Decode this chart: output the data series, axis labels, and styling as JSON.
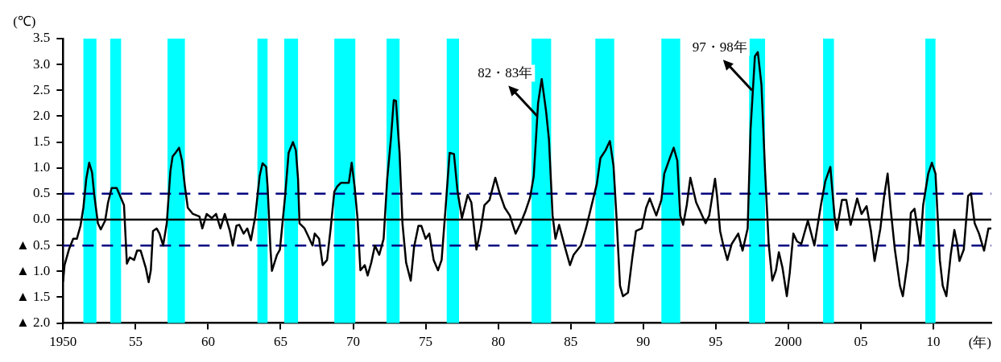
{
  "chart_data": {
    "type": "line",
    "ylabel": "(℃)",
    "xlabel": "(年)",
    "xlim": [
      1950,
      2014
    ],
    "xticks": [
      1950,
      {
        "value": 1955,
        "label": "55"
      },
      {
        "value": 1960,
        "label": "60"
      },
      {
        "value": 1965,
        "label": "65"
      },
      {
        "value": 1970,
        "label": "70"
      },
      {
        "value": 1975,
        "label": "75"
      },
      {
        "value": 1980,
        "label": "80"
      },
      {
        "value": 1985,
        "label": "85"
      },
      {
        "value": 1990,
        "label": "90"
      },
      {
        "value": 1995,
        "label": "95"
      },
      2000,
      {
        "value": 2005,
        "label": "05"
      },
      {
        "value": 2010,
        "label": "10"
      }
    ],
    "ylim": [
      -2,
      3.5
    ],
    "yticks": [
      {
        "value": -2,
        "label": "▲ 2.0"
      },
      {
        "value": -1.5,
        "label": "▲ 1.5"
      },
      {
        "value": -1,
        "label": "▲ 1.0"
      },
      {
        "value": -0.5,
        "label": "▲ 0.5"
      },
      {
        "value": 0,
        "label": "0.0"
      },
      0.5,
      {
        "value": 1,
        "label": "1.0"
      },
      1.5,
      {
        "value": 2,
        "label": "2.0"
      },
      2.5,
      {
        "value": 3,
        "label": "3.0"
      },
      3.5
    ],
    "x": [
      1950.0,
      1950.1,
      1950.4,
      1950.7,
      1950.95,
      1951.2,
      1951.4,
      1951.6,
      1951.8,
      1952.0,
      1952.15,
      1952.4,
      1952.6,
      1952.9,
      1953.1,
      1953.35,
      1953.7,
      1954.2,
      1954.4,
      1954.6,
      1954.9,
      1955.1,
      1955.35,
      1955.7,
      1955.9,
      1956.05,
      1956.2,
      1956.45,
      1956.65,
      1956.9,
      1957.15,
      1957.4,
      1957.55,
      1957.75,
      1958.0,
      1958.2,
      1958.4,
      1958.6,
      1958.95,
      1959.4,
      1959.6,
      1959.9,
      1960.25,
      1960.55,
      1960.85,
      1961.15,
      1961.5,
      1961.7,
      1961.95,
      1962.15,
      1962.45,
      1962.7,
      1962.95,
      1963.25,
      1963.55,
      1963.75,
      1964.0,
      1964.1,
      1964.3,
      1964.4,
      1964.75,
      1964.95,
      1965.3,
      1965.55,
      1965.85,
      1966.05,
      1966.2,
      1966.3,
      1966.65,
      1966.9,
      1967.2,
      1967.35,
      1967.65,
      1967.9,
      1968.2,
      1968.45,
      1968.7,
      1968.9,
      1969.15,
      1969.7,
      1969.9,
      1970.1,
      1970.3,
      1970.5,
      1970.8,
      1971.0,
      1971.25,
      1971.5,
      1971.8,
      1972.1,
      1972.35,
      1972.6,
      1972.8,
      1972.95,
      1973.2,
      1973.4,
      1973.65,
      1973.97,
      1974.2,
      1974.5,
      1974.7,
      1975.0,
      1975.25,
      1975.55,
      1975.85,
      1976.1,
      1976.4,
      1976.65,
      1976.95,
      1977.2,
      1977.5,
      1977.9,
      1978.15,
      1978.5,
      1978.8,
      1979.05,
      1979.4,
      1979.8,
      1980.1,
      1980.45,
      1980.8,
      1981.2,
      1981.55,
      1981.9,
      1982.2,
      1982.45,
      1982.75,
      1983.0,
      1983.3,
      1983.5,
      1983.75,
      1983.95,
      1984.2,
      1984.6,
      1984.95,
      1985.2,
      1985.7,
      1986.05,
      1986.4,
      1986.8,
      1987.05,
      1987.4,
      1987.7,
      1987.95,
      1988.15,
      1988.4,
      1988.6,
      1988.95,
      1989.25,
      1989.5,
      1989.9,
      1990.2,
      1990.45,
      1990.9,
      1991.25,
      1991.45,
      1991.9,
      1992.1,
      1992.35,
      1992.55,
      1992.75,
      1993.0,
      1993.25,
      1993.65,
      1993.9,
      1994.3,
      1994.55,
      1994.95,
      1995.1,
      1995.3,
      1995.5,
      1995.8,
      1996.1,
      1996.55,
      1996.85,
      1997.2,
      1997.4,
      1997.7,
      1997.9,
      1998.15,
      1998.4,
      1998.65,
      1998.9,
      1999.15,
      1999.35,
      1999.6,
      1999.9,
      2000.1,
      2000.35,
      2000.6,
      2000.9,
      2001.35,
      2001.8,
      2002.25,
      2002.55,
      2002.9,
      2003.2,
      2003.35,
      2003.7,
      2004.0,
      2004.3,
      2004.75,
      2005.05,
      2005.4,
      2005.7,
      2005.95,
      2006.35,
      2006.6,
      2006.85,
      2007.05,
      2007.35,
      2007.7,
      2007.9,
      2008.25,
      2008.45,
      2008.7,
      2009.1,
      2009.3,
      2009.65,
      2009.9,
      2010.15,
      2010.45,
      2010.65,
      2010.9,
      2011.2,
      2011.45,
      2011.65,
      2011.8,
      2012.1,
      2012.4,
      2012.6,
      2012.85,
      2013.15,
      2013.5,
      2013.8,
      2014.0
    ],
    "series": [
      {
        "color": "#000000",
        "values": [
          -1.2,
          -0.88,
          -0.58,
          -0.37,
          -0.37,
          -0.12,
          0.23,
          0.79,
          1.1,
          0.91,
          0.48,
          -0.07,
          -0.19,
          -0.02,
          0.33,
          0.61,
          0.61,
          0.28,
          -0.85,
          -0.73,
          -0.78,
          -0.6,
          -0.6,
          -0.93,
          -1.21,
          -0.98,
          -0.22,
          -0.17,
          -0.27,
          -0.5,
          -0.07,
          0.94,
          1.22,
          1.29,
          1.39,
          1.14,
          0.64,
          0.23,
          0.11,
          0.06,
          -0.17,
          0.11,
          0.03,
          0.11,
          -0.17,
          0.11,
          -0.22,
          -0.5,
          -0.12,
          -0.1,
          -0.27,
          -0.17,
          -0.4,
          0.06,
          0.84,
          1.09,
          1.02,
          0.64,
          -0.58,
          -0.99,
          -0.68,
          -0.58,
          0.43,
          1.29,
          1.5,
          1.34,
          0.79,
          -0.07,
          -0.17,
          -0.32,
          -0.5,
          -0.27,
          -0.37,
          -0.88,
          -0.78,
          -0.17,
          0.54,
          0.64,
          0.71,
          0.71,
          1.1,
          0.64,
          0.03,
          -0.98,
          -0.88,
          -1.08,
          -0.83,
          -0.5,
          -0.68,
          -0.37,
          0.79,
          1.55,
          2.31,
          2.3,
          1.29,
          -0.07,
          -0.83,
          -1.18,
          -0.53,
          -0.12,
          -0.12,
          -0.37,
          -0.27,
          -0.78,
          -0.98,
          -0.78,
          0.33,
          1.29,
          1.27,
          0.54,
          0.03,
          0.48,
          0.33,
          -0.58,
          -0.17,
          0.28,
          0.38,
          0.81,
          0.51,
          0.23,
          0.08,
          -0.27,
          -0.07,
          0.18,
          0.43,
          0.84,
          2.25,
          2.72,
          2.1,
          1.55,
          0.08,
          -0.37,
          -0.1,
          -0.53,
          -0.88,
          -0.68,
          -0.5,
          -0.17,
          0.23,
          0.69,
          1.19,
          1.34,
          1.52,
          1.04,
          0.08,
          -1.28,
          -1.48,
          -1.41,
          -0.73,
          -0.22,
          -0.17,
          0.23,
          0.41,
          0.08,
          0.38,
          0.89,
          1.24,
          1.39,
          1.14,
          0.08,
          -0.1,
          0.28,
          0.81,
          0.33,
          0.18,
          -0.07,
          0.08,
          0.79,
          0.43,
          -0.22,
          -0.47,
          -0.78,
          -0.47,
          -0.27,
          -0.6,
          -0.17,
          1.75,
          3.16,
          3.24,
          2.61,
          0.94,
          -0.47,
          -1.18,
          -0.98,
          -0.63,
          -0.93,
          -1.48,
          -1.03,
          -0.27,
          -0.42,
          -0.47,
          -0.02,
          -0.5,
          0.28,
          0.74,
          1.02,
          0.03,
          -0.2,
          0.38,
          0.38,
          -0.1,
          0.41,
          0.11,
          0.26,
          -0.22,
          -0.8,
          -0.17,
          0.43,
          0.89,
          0.23,
          -0.58,
          -1.28,
          -1.48,
          -0.78,
          0.13,
          0.21,
          -0.5,
          0.28,
          0.89,
          1.1,
          0.89,
          -0.78,
          -1.28,
          -1.48,
          -0.68,
          -0.2,
          -0.47,
          -0.8,
          -0.58,
          0.46,
          0.51,
          -0.07,
          -0.27,
          -0.6,
          -0.17,
          -0.17
        ]
      }
    ],
    "bands": [
      {
        "axis": "x",
        "from": 1951.4,
        "to": 1952.3,
        "color": "#00ffff"
      },
      {
        "axis": "x",
        "from": 1953.25,
        "to": 1954.0,
        "color": "#00ffff"
      },
      {
        "axis": "x",
        "from": 1957.2,
        "to": 1958.4,
        "color": "#00ffff"
      },
      {
        "axis": "x",
        "from": 1963.4,
        "to": 1964.1,
        "color": "#00ffff"
      },
      {
        "axis": "x",
        "from": 1965.25,
        "to": 1966.2,
        "color": "#00ffff"
      },
      {
        "axis": "x",
        "from": 1968.7,
        "to": 1970.15,
        "color": "#00ffff"
      },
      {
        "axis": "x",
        "from": 1972.3,
        "to": 1973.2,
        "color": "#00ffff"
      },
      {
        "axis": "x",
        "from": 1976.45,
        "to": 1977.3,
        "color": "#00ffff"
      },
      {
        "axis": "x",
        "from": 1982.3,
        "to": 1983.65,
        "color": "#00ffff"
      },
      {
        "axis": "x",
        "from": 1986.7,
        "to": 1988.0,
        "color": "#00ffff"
      },
      {
        "axis": "x",
        "from": 1991.25,
        "to": 1992.55,
        "color": "#00ffff"
      },
      {
        "axis": "x",
        "from": 1997.3,
        "to": 1998.4,
        "color": "#00ffff"
      },
      {
        "axis": "x",
        "from": 2002.4,
        "to": 2003.15,
        "color": "#00ffff"
      },
      {
        "axis": "x",
        "from": 2009.45,
        "to": 2010.15,
        "color": "#00ffff"
      }
    ],
    "ref_lines": [
      {
        "axis": "y",
        "value": 0.5,
        "color": "#000080",
        "line_style": "dashed"
      },
      {
        "axis": "y",
        "value": 0,
        "color": "#000000",
        "line_style": "solid"
      },
      {
        "axis": "y",
        "value": -0.5,
        "color": "#000080",
        "line_style": "dashed"
      }
    ],
    "annotations": [
      {
        "text": "82・83年",
        "x": 1982.7,
        "y": 2.0
      },
      {
        "text": "97・98年",
        "x": 1997.5,
        "y": 2.5
      }
    ],
    "legend": false,
    "grid": false,
    "marker": "none",
    "line_style": "solid"
  }
}
